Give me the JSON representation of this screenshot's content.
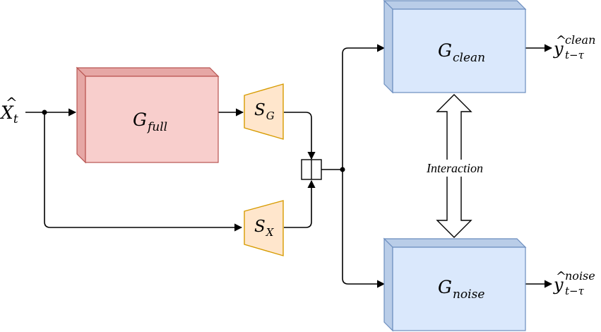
{
  "input": {
    "base": "X",
    "accent": "^",
    "sub": "t"
  },
  "g_full": {
    "base": "G",
    "sub": "full"
  },
  "s_g": {
    "base": "S",
    "sub": "G"
  },
  "s_x": {
    "base": "S",
    "sub": "X"
  },
  "g_clean": {
    "base": "G",
    "sub": "clean"
  },
  "g_noise": {
    "base": "G",
    "sub": "noise"
  },
  "out_clean": {
    "base": "y",
    "accent": "^",
    "sup": "clean",
    "sub": "t−τ"
  },
  "out_noise": {
    "base": "y",
    "accent": "^",
    "sup": "noise",
    "sub": "t−τ"
  },
  "interaction_label": "Interaction",
  "colors": {
    "g_full_fill": "#f8cecc",
    "g_full_side": "#e6a7a5",
    "g_full_stroke": "#b85450",
    "encoder_fill": "#ffe6cc",
    "encoder_stroke": "#d79b00",
    "g_blue_fill": "#dae8fc",
    "g_blue_side": "#b9cde8",
    "g_blue_stroke": "#6c8ebf"
  }
}
